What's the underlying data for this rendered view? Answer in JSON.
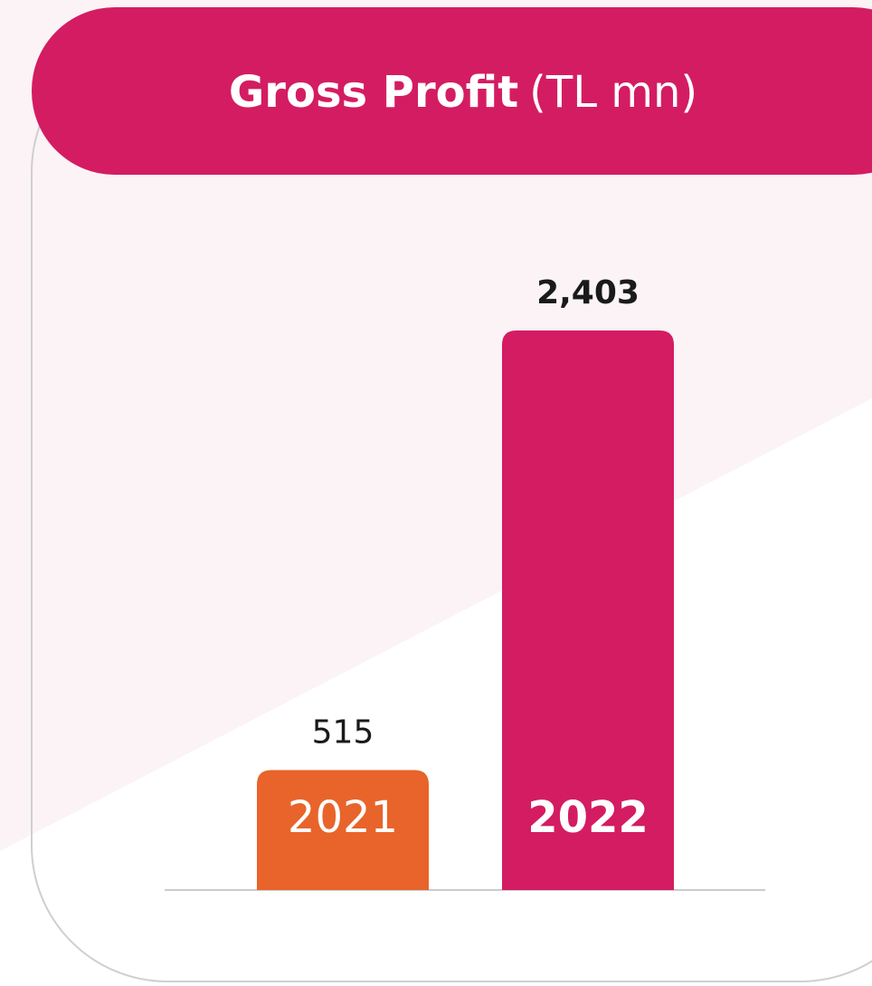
{
  "chart_data": {
    "type": "bar",
    "title": "Gross Profit",
    "subtitle": "(TL mn)",
    "categories": [
      "2021",
      "2022"
    ],
    "values": [
      515,
      2403
    ],
    "value_labels": [
      "515",
      "2,403"
    ],
    "colors": [
      "#e8642a",
      "#d41c62"
    ]
  }
}
